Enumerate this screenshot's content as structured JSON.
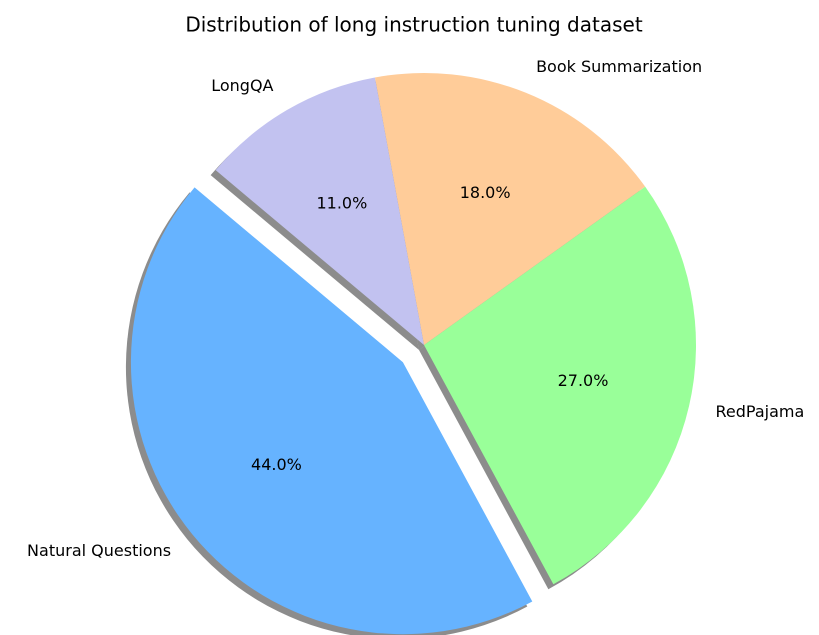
{
  "chart_data": {
    "type": "pie",
    "title": "Distribution of long instruction tuning dataset",
    "categories": [
      "Natural Questions",
      "RedPajama",
      "Book Summarization",
      "LongQA"
    ],
    "values": [
      44,
      27,
      18,
      11
    ],
    "value_labels": [
      "44.0%",
      "27.0%",
      "18.0%",
      "11.0%"
    ],
    "colors": [
      "#66b3ff",
      "#99ff99",
      "#ffcc99",
      "#c2c2f0"
    ],
    "explode": [
      0.1,
      0,
      0,
      0
    ],
    "shadow": true
  }
}
